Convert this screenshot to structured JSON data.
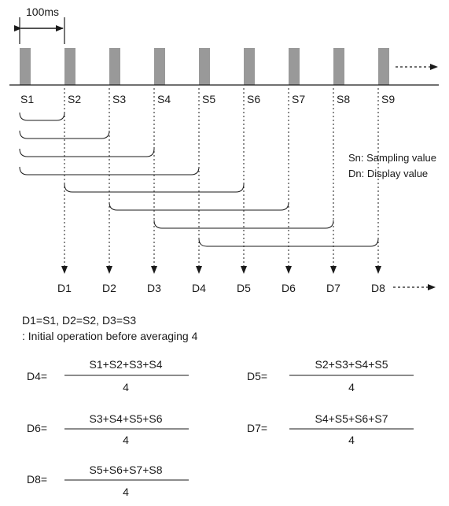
{
  "interval_label": "100ms",
  "samples": [
    "S1",
    "S2",
    "S3",
    "S4",
    "S5",
    "S6",
    "S7",
    "S8",
    "S9"
  ],
  "displays": [
    "D1",
    "D2",
    "D3",
    "D4",
    "D5",
    "D6",
    "D7",
    "D8"
  ],
  "legend": {
    "sampling": "Sn: Sampling value",
    "display": "Dn: Display value"
  },
  "initial": {
    "line1": "D1=S1, D2=S2, D3=S3",
    "line2": ": Initial operation before averaging 4"
  },
  "formulas": [
    {
      "lhs": "D4=",
      "num": "S1+S2+S3+S4",
      "den": "4"
    },
    {
      "lhs": "D5=",
      "num": "S2+S3+S4+S5",
      "den": "4"
    },
    {
      "lhs": "D6=",
      "num": "S3+S4+S5+S6",
      "den": "4"
    },
    {
      "lhs": "D7=",
      "num": "S4+S5+S6+S7",
      "den": "4"
    },
    {
      "lhs": "D8=",
      "num": "S5+S6+S7+S8",
      "den": "4"
    }
  ]
}
